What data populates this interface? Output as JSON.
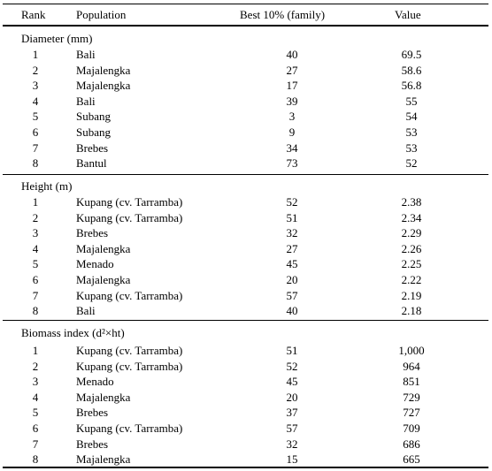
{
  "headers": {
    "rank": "Rank",
    "population": "Population",
    "family": "Best 10% (family)",
    "value": "Value"
  },
  "sections": [
    {
      "title": "Diameter (mm)",
      "rows": [
        {
          "rank": "1",
          "population": "Bali",
          "family": "40",
          "value": "69.5"
        },
        {
          "rank": "2",
          "population": "Majalengka",
          "family": "27",
          "value": "58.6"
        },
        {
          "rank": "3",
          "population": "Majalengka",
          "family": "17",
          "value": "56.8"
        },
        {
          "rank": "4",
          "population": "Bali",
          "family": "39",
          "value": "55"
        },
        {
          "rank": "5",
          "population": "Subang",
          "family": "3",
          "value": "54"
        },
        {
          "rank": "6",
          "population": "Subang",
          "family": "9",
          "value": "53"
        },
        {
          "rank": "7",
          "population": "Brebes",
          "family": "34",
          "value": "53"
        },
        {
          "rank": "8",
          "population": "Bantul",
          "family": "73",
          "value": "52"
        }
      ]
    },
    {
      "title": "Height (m)",
      "rows": [
        {
          "rank": "1",
          "population": "Kupang (cv. Tarramba)",
          "family": "52",
          "value": "2.38"
        },
        {
          "rank": "2",
          "population": "Kupang (cv. Tarramba)",
          "family": "51",
          "value": "2.34"
        },
        {
          "rank": "3",
          "population": "Brebes",
          "family": "32",
          "value": "2.29"
        },
        {
          "rank": "4",
          "population": "Majalengka",
          "family": "27",
          "value": "2.26"
        },
        {
          "rank": "5",
          "population": "Menado",
          "family": "45",
          "value": "2.25"
        },
        {
          "rank": "6",
          "population": "Majalengka",
          "family": "20",
          "value": "2.22"
        },
        {
          "rank": "7",
          "population": "Kupang (cv. Tarramba)",
          "family": "57",
          "value": "2.19"
        },
        {
          "rank": "8",
          "population": "Bali",
          "family": "40",
          "value": "2.18"
        }
      ]
    },
    {
      "title": "Biomass index (d²×ht)",
      "rows": [
        {
          "rank": "1",
          "population": "Kupang (cv. Tarramba)",
          "family": "51",
          "value": "1,000"
        },
        {
          "rank": "2",
          "population": "Kupang (cv. Tarramba)",
          "family": "52",
          "value": "964"
        },
        {
          "rank": "3",
          "population": "Menado",
          "family": "45",
          "value": "851"
        },
        {
          "rank": "4",
          "population": "Majalengka",
          "family": "20",
          "value": "729"
        },
        {
          "rank": "5",
          "population": "Brebes",
          "family": "37",
          "value": "727"
        },
        {
          "rank": "6",
          "population": "Kupang (cv. Tarramba)",
          "family": "57",
          "value": "709"
        },
        {
          "rank": "7",
          "population": "Brebes",
          "family": "32",
          "value": "686"
        },
        {
          "rank": "8",
          "population": "Majalengka",
          "family": "15",
          "value": "665"
        }
      ]
    }
  ]
}
